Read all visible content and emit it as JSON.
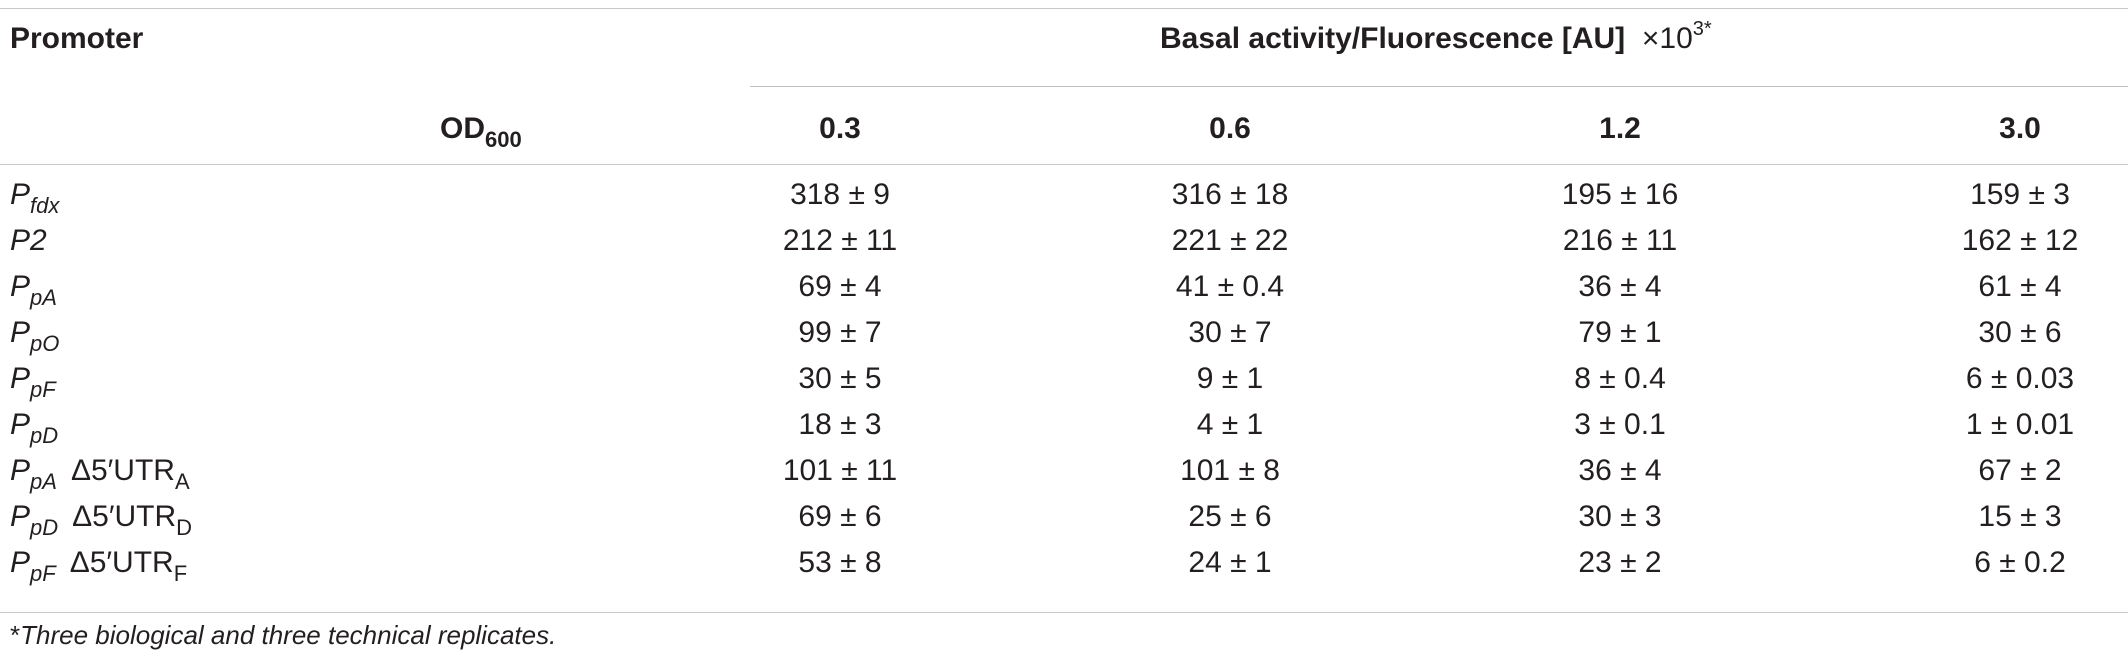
{
  "table": {
    "header": {
      "promoter": "Promoter",
      "group_title": "Basal activity/Fluorescence [AU]",
      "group_scale": "×10",
      "group_exp": "3",
      "group_star": "*",
      "od_label": "OD",
      "od_sub": "600",
      "columns": [
        "0.3",
        "0.6",
        "1.2",
        "3.0"
      ]
    },
    "rows": [
      {
        "base": "P",
        "sub": "fdx",
        "utr": "",
        "utr_sub": "",
        "values": [
          "318 ± 9",
          "316 ± 18",
          "195 ± 16",
          "159 ± 3"
        ]
      },
      {
        "base": "P2",
        "sub": "",
        "utr": "",
        "utr_sub": "",
        "values": [
          "212 ± 11",
          "221 ± 22",
          "216 ± 11",
          "162 ± 12"
        ]
      },
      {
        "base": "P",
        "sub": "pA",
        "utr": "",
        "utr_sub": "",
        "values": [
          "69 ± 4",
          "41 ± 0.4",
          "36 ± 4",
          "61 ± 4"
        ]
      },
      {
        "base": "P",
        "sub": "pO",
        "utr": "",
        "utr_sub": "",
        "values": [
          "99 ± 7",
          "30 ± 7",
          "79 ± 1",
          "30 ± 6"
        ]
      },
      {
        "base": "P",
        "sub": "pF",
        "utr": "",
        "utr_sub": "",
        "values": [
          "30 ± 5",
          "9 ± 1",
          "8 ± 0.4",
          "6 ± 0.03"
        ]
      },
      {
        "base": "P",
        "sub": "pD",
        "utr": "",
        "utr_sub": "",
        "values": [
          "18 ± 3",
          "4 ± 1",
          "3 ± 0.1",
          "1 ± 0.01"
        ]
      },
      {
        "base": "P",
        "sub": "pA",
        "utr": "Δ5′UTR",
        "utr_sub": "A",
        "values": [
          "101 ± 11",
          "101 ± 8",
          "36 ± 4",
          "67 ± 2"
        ]
      },
      {
        "base": "P",
        "sub": "pD",
        "utr": "Δ5′UTR",
        "utr_sub": "D",
        "values": [
          "69 ± 6",
          "25 ± 6",
          "30 ± 3",
          "15 ± 3"
        ]
      },
      {
        "base": "P",
        "sub": "pF",
        "utr": "Δ5′UTR",
        "utr_sub": "F",
        "values": [
          "53 ± 8",
          "24 ± 1",
          "23 ± 2",
          "6 ± 0.2"
        ]
      }
    ],
    "footnote_star": "*",
    "footnote": "Three biological and three technical replicates."
  }
}
